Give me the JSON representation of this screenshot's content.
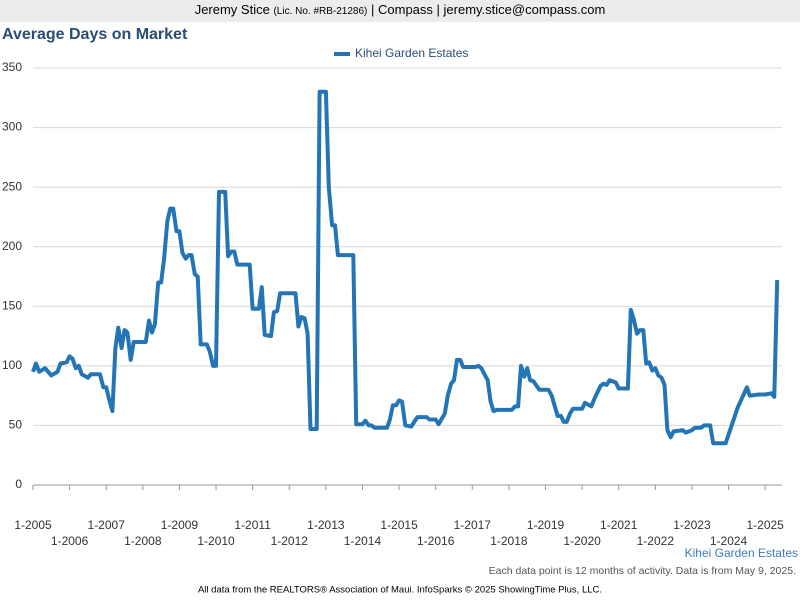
{
  "header": {
    "name": "Jeremy Stice",
    "license": "(Lic. No. #RB-21286)",
    "rest": "| Compass | jeremy.stice@compass.com"
  },
  "chart_data": {
    "type": "line",
    "title": "Average Days on Market",
    "x": [
      2005.0,
      2005.08,
      2005.17,
      2005.33,
      2005.5,
      2005.67,
      2005.75,
      2005.92,
      2006.0,
      2006.08,
      2006.17,
      2006.25,
      2006.33,
      2006.5,
      2006.58,
      2006.83,
      2006.92,
      2007.0,
      2007.08,
      2007.17,
      2007.25,
      2007.33,
      2007.42,
      2007.5,
      2007.58,
      2007.67,
      2007.75,
      2008.08,
      2008.17,
      2008.25,
      2008.33,
      2008.42,
      2008.5,
      2008.58,
      2008.67,
      2008.75,
      2008.83,
      2008.92,
      2009.0,
      2009.08,
      2009.17,
      2009.25,
      2009.33,
      2009.42,
      2009.5,
      2009.58,
      2009.75,
      2009.83,
      2009.92,
      2010.0,
      2010.08,
      2010.25,
      2010.33,
      2010.42,
      2010.5,
      2010.58,
      2010.92,
      2011.0,
      2011.17,
      2011.25,
      2011.33,
      2011.5,
      2011.58,
      2011.67,
      2011.75,
      2012.17,
      2012.25,
      2012.33,
      2012.42,
      2012.5,
      2012.58,
      2012.75,
      2012.83,
      2013.0,
      2013.08,
      2013.17,
      2013.25,
      2013.33,
      2013.75,
      2013.83,
      2014.0,
      2014.08,
      2014.17,
      2014.25,
      2014.33,
      2014.67,
      2014.75,
      2014.83,
      2014.92,
      2015.0,
      2015.08,
      2015.17,
      2015.33,
      2015.5,
      2015.75,
      2015.83,
      2016.0,
      2016.08,
      2016.25,
      2016.33,
      2016.42,
      2016.5,
      2016.58,
      2016.67,
      2016.75,
      2017.08,
      2017.17,
      2017.25,
      2017.33,
      2017.42,
      2017.5,
      2017.58,
      2017.67,
      2018.08,
      2018.17,
      2018.25,
      2018.33,
      2018.42,
      2018.5,
      2018.58,
      2018.67,
      2018.83,
      2019.08,
      2019.17,
      2019.33,
      2019.42,
      2019.5,
      2019.58,
      2019.67,
      2019.75,
      2020.0,
      2020.08,
      2020.25,
      2020.33,
      2020.5,
      2020.58,
      2020.67,
      2020.75,
      2020.92,
      2021.0,
      2021.25,
      2021.33,
      2021.42,
      2021.5,
      2021.58,
      2021.67,
      2021.75,
      2021.83,
      2021.92,
      2022.0,
      2022.08,
      2022.17,
      2022.25,
      2022.33,
      2022.42,
      2022.5,
      2022.75,
      2022.83,
      2023.0,
      2023.08,
      2023.25,
      2023.33,
      2023.5,
      2023.58,
      2023.92,
      2024.25,
      2024.5,
      2024.58,
      2024.83,
      2025.0,
      2025.17,
      2025.25,
      2025.33
    ],
    "series": [
      {
        "name": "Kihei Garden Estates",
        "color": "#2475b5",
        "values": [
          95,
          102,
          95,
          98,
          92,
          95,
          102,
          103,
          108,
          106,
          98,
          100,
          93,
          90,
          93,
          93,
          82,
          82,
          72,
          62,
          115,
          132,
          115,
          130,
          128,
          105,
          120,
          120,
          138,
          128,
          135,
          170,
          170,
          190,
          222,
          232,
          232,
          213,
          213,
          195,
          190,
          193,
          193,
          177,
          175,
          118,
          118,
          112,
          100,
          100,
          246,
          246,
          192,
          196,
          196,
          185,
          185,
          148,
          148,
          166,
          126,
          125,
          145,
          146,
          161,
          161,
          133,
          141,
          140,
          127,
          47,
          47,
          330,
          330,
          250,
          218,
          218,
          193,
          193,
          51,
          51,
          54,
          50,
          50,
          48,
          48,
          55,
          67,
          67,
          71,
          70,
          50,
          49,
          57,
          57,
          55,
          55,
          51,
          60,
          75,
          85,
          88,
          105,
          105,
          99,
          99,
          100,
          98,
          93,
          88,
          70,
          62,
          63,
          63,
          66,
          66,
          100,
          91,
          98,
          88,
          87,
          80,
          80,
          75,
          58,
          58,
          53,
          53,
          60,
          64,
          64,
          69,
          66,
          72,
          83,
          85,
          84,
          88,
          86,
          81,
          81,
          147,
          138,
          127,
          130,
          130,
          102,
          103,
          96,
          98,
          92,
          90,
          84,
          46,
          40,
          45,
          46,
          44,
          46,
          48,
          48,
          50,
          50,
          35,
          35,
          65,
          82,
          75,
          76,
          76,
          77,
          74,
          172
        ]
      }
    ],
    "xlim": [
      2005.0,
      2025.46
    ],
    "ylim": [
      0,
      350
    ],
    "yticks": [
      0,
      50,
      100,
      150,
      200,
      250,
      300,
      350
    ],
    "xticks": [
      {
        "value": 2005,
        "label": "1-2005"
      },
      {
        "value": 2006,
        "label": "1-2006"
      },
      {
        "value": 2007,
        "label": "1-2007"
      },
      {
        "value": 2008,
        "label": "1-2008"
      },
      {
        "value": 2009,
        "label": "1-2009"
      },
      {
        "value": 2010,
        "label": "1-2010"
      },
      {
        "value": 2011,
        "label": "1-2011"
      },
      {
        "value": 2012,
        "label": "1-2012"
      },
      {
        "value": 2013,
        "label": "1-2013"
      },
      {
        "value": 2014,
        "label": "1-2014"
      },
      {
        "value": 2015,
        "label": "1-2015"
      },
      {
        "value": 2016,
        "label": "1-2016"
      },
      {
        "value": 2017,
        "label": "1-2017"
      },
      {
        "value": 2018,
        "label": "1-2018"
      },
      {
        "value": 2019,
        "label": "1-2019"
      },
      {
        "value": 2020,
        "label": "1-2020"
      },
      {
        "value": 2021,
        "label": "1-2021"
      },
      {
        "value": 2022,
        "label": "1-2022"
      },
      {
        "value": 2023,
        "label": "1-2023"
      },
      {
        "value": 2024,
        "label": "1-2024"
      },
      {
        "value": 2025,
        "label": "1-2025"
      }
    ],
    "grid": true,
    "legend": "top",
    "area_label": "Kihei Garden Estates",
    "note": "Each data point is 12 months of activity. Data is from May 9, 2025.",
    "footer": "All data from the REALTORS® Association of Maui. InfoSparks © 2025 ShowingTime Plus, LLC."
  }
}
